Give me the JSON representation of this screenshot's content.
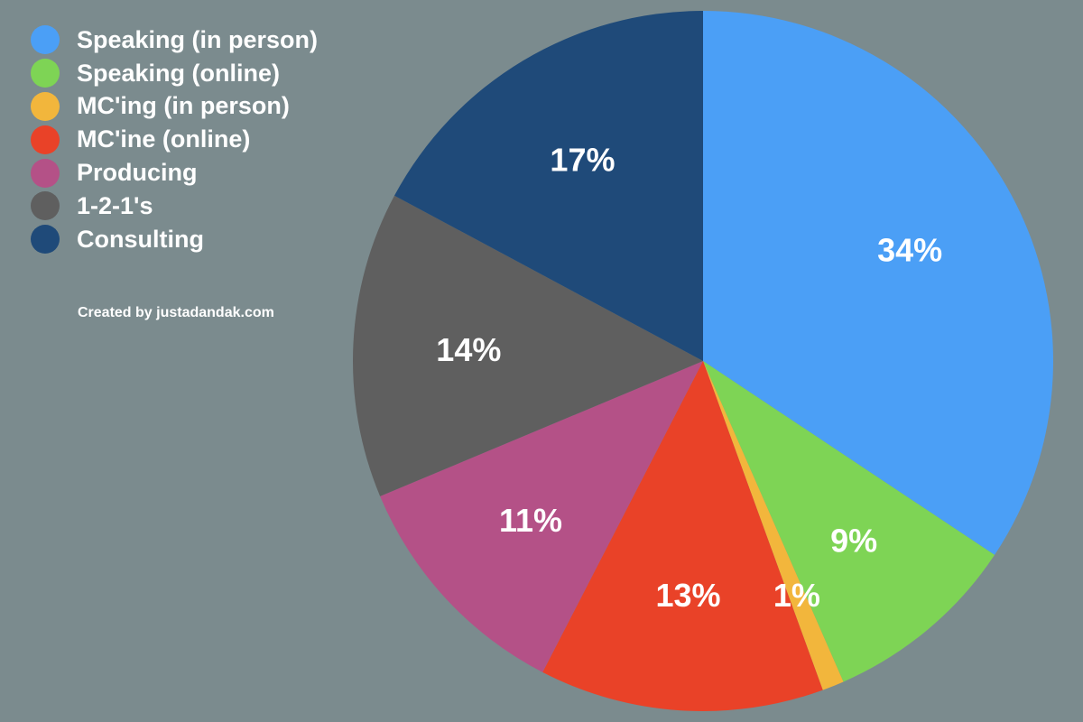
{
  "chart_data": {
    "type": "pie",
    "title": "",
    "slices": [
      {
        "label": "Speaking (in person)",
        "value": 34,
        "value_label": "34%",
        "color": "#4b9ff6"
      },
      {
        "label": "Speaking (online)",
        "value": 9,
        "value_label": "9%",
        "color": "#7ed455"
      },
      {
        "label": "MC'ing (in person)",
        "value": 1,
        "value_label": "1%",
        "color": "#f2b63c"
      },
      {
        "label": "MC'ine (online)",
        "value": 13,
        "value_label": "13%",
        "color": "#e94228"
      },
      {
        "label": "Producing",
        "value": 11,
        "value_label": "11%",
        "color": "#b45187"
      },
      {
        "label": "1-2-1's",
        "value": 14,
        "value_label": "14%",
        "color": "#5f5f5f"
      },
      {
        "label": "Consulting",
        "value": 17,
        "value_label": "17%",
        "color": "#1f4a79"
      }
    ],
    "legend_position": "top-left",
    "start_angle": "12 o'clock",
    "direction": "clockwise"
  },
  "credit": "Created by justadandak.com",
  "colors": {
    "background": "#7b8b8e",
    "text": "#ffffff"
  }
}
